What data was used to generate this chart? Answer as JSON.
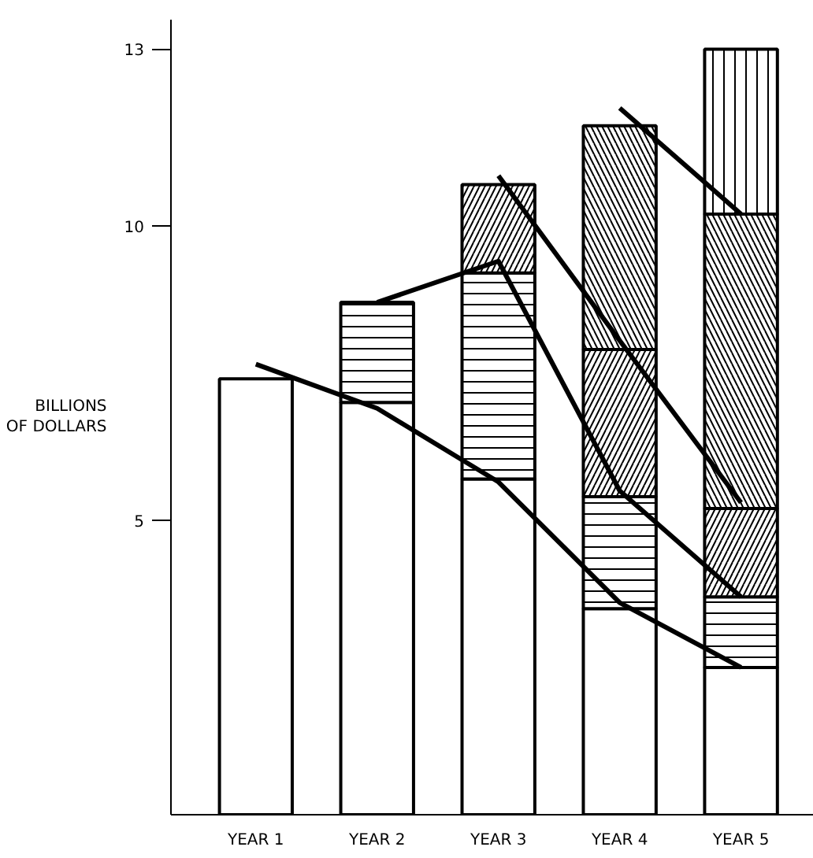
{
  "chart_data": {
    "type": "bar",
    "stacked": true,
    "ylabel": "BILLIONS OF DOLLARS",
    "categories": [
      "YEAR 1",
      "YEAR 2",
      "YEAR 3",
      "YEAR 4",
      "YEAR 5"
    ],
    "ylim": [
      0,
      13.5
    ],
    "yticks": [
      5,
      10,
      13
    ],
    "grid": false,
    "series": [
      {
        "color": "#ffffff",
        "values": [
          7.4,
          7.0,
          5.7,
          3.5,
          2.5
        ]
      },
      {
        "color": "#ffffff",
        "values": [
          null,
          1.7,
          3.5,
          1.9,
          1.2
        ]
      },
      {
        "color": "#ffffff",
        "values": [
          null,
          null,
          1.5,
          2.5,
          1.5
        ]
      },
      {
        "color": "#ffffff",
        "values": [
          null,
          null,
          null,
          3.8,
          5.0
        ]
      },
      {
        "color": "#ffffff",
        "values": [
          null,
          null,
          null,
          null,
          2.8
        ]
      },
      {
        "type": "line",
        "color": "#000000",
        "values": [
          7.65,
          6.9,
          5.65,
          3.6,
          2.5
        ]
      },
      {
        "type": "line",
        "color": "#000000",
        "values": [
          null,
          8.7,
          9.4,
          5.5,
          3.7
        ]
      },
      {
        "type": "line",
        "color": "#000000",
        "values": [
          null,
          null,
          10.85,
          8.05,
          5.3
        ]
      },
      {
        "type": "line",
        "color": "#000000",
        "values": [
          null,
          null,
          null,
          12.0,
          10.2
        ]
      }
    ]
  }
}
